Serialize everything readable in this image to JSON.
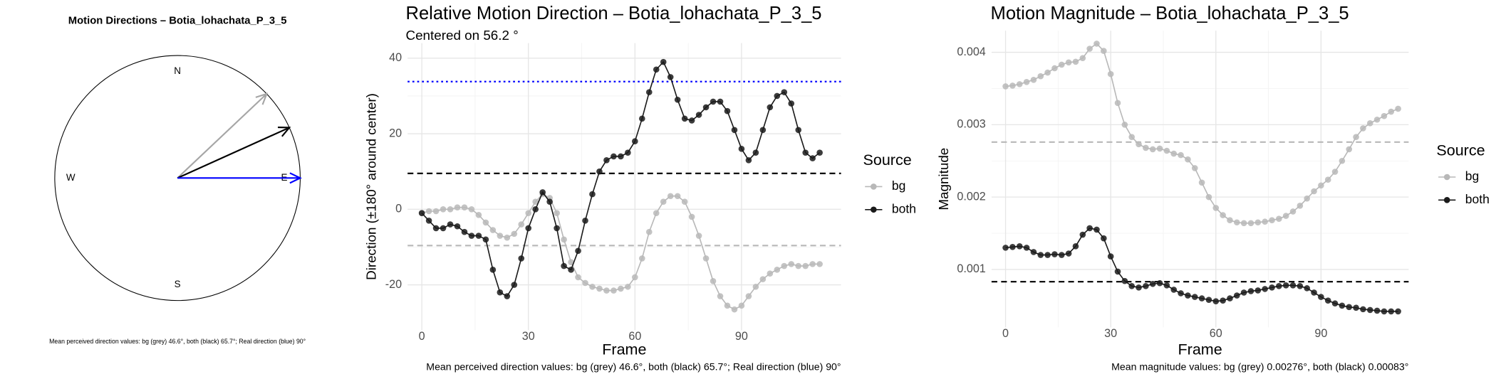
{
  "chart_data": [
    {
      "type": "compass",
      "title": "Motion Directions – Botia_lohachata_P_3_5",
      "labels": [
        "N",
        "E",
        "S",
        "W"
      ],
      "directions": [
        46.6,
        65.7,
        90
      ],
      "colors": [
        "#a6a6a6",
        "#000000",
        "#0000ff"
      ],
      "caption": "Mean perceived direction values: bg (grey) 46.6°, both (black) 65.7°; Real direction (blue) 90°"
    },
    {
      "type": "line",
      "title": "Relative Motion Direction – Botia_lohachata_P_3_5",
      "subtitle": "Centered on  56.2 °",
      "x_label": "Frame",
      "y_label": "Direction (±180° around center)",
      "caption": "Mean perceived direction values: bg (grey) 46.6°, both (black) 65.7°; Real direction (blue) 90°",
      "legend_title": "Source",
      "grid": true,
      "xlim": [
        -4,
        118
      ],
      "xticks": [
        0,
        30,
        60,
        90
      ],
      "ylim": [
        -32,
        44
      ],
      "yticks": [
        -20,
        0,
        20,
        40
      ],
      "x": [
        0,
        2,
        4,
        6,
        8,
        10,
        12,
        14,
        16,
        18,
        20,
        22,
        24,
        26,
        28,
        30,
        32,
        34,
        36,
        38,
        40,
        42,
        44,
        46,
        48,
        50,
        52,
        54,
        56,
        58,
        60,
        62,
        64,
        66,
        68,
        70,
        72,
        74,
        76,
        78,
        80,
        82,
        84,
        86,
        88,
        90,
        92,
        94,
        96,
        98,
        100,
        102,
        104,
        106,
        108,
        110,
        112
      ],
      "series": [
        {
          "name": "bg",
          "color": "#b8b8b8",
          "values": [
            -1,
            -0.5,
            -0.5,
            0,
            0,
            0.5,
            0.5,
            0,
            -1.5,
            -3.5,
            -5.5,
            -7,
            -7.5,
            -6.5,
            -4,
            -1,
            2,
            4,
            3,
            -1,
            -8,
            -14,
            -18,
            -19.5,
            -20.5,
            -21,
            -21.5,
            -21.5,
            -21,
            -20.5,
            -18,
            -13,
            -6,
            -1,
            2,
            3.5,
            3.5,
            2,
            -2,
            -7,
            -13,
            -19,
            -23,
            -25.5,
            -26.5,
            -25.5,
            -23,
            -20.5,
            -18.5,
            -17,
            -16,
            -15,
            -14.5,
            -15,
            -15,
            -14.5,
            -14.5
          ]
        },
        {
          "name": "both",
          "color": "#1a1a1a",
          "values": [
            -1,
            -3,
            -5,
            -5,
            -4,
            -4.5,
            -6,
            -7,
            -7,
            -8,
            -16,
            -22,
            -23,
            -20,
            -13,
            -5,
            0,
            4.5,
            2,
            -5,
            -15,
            -16,
            -11,
            -3,
            4,
            10,
            13,
            14,
            14,
            15,
            18,
            24,
            31,
            37,
            39,
            35,
            29,
            24,
            23.5,
            25,
            27,
            28.5,
            28.5,
            26,
            21,
            16,
            13,
            15,
            21,
            27,
            30,
            31,
            28,
            21,
            15,
            13.5,
            15
          ]
        }
      ],
      "hlines": [
        {
          "value": 33.8,
          "color": "#0000ff",
          "style": "dotted"
        },
        {
          "value": 9.5,
          "color": "#000000",
          "style": "dashed"
        },
        {
          "value": -9.6,
          "color": "#b8b8b8",
          "style": "dashed"
        }
      ]
    },
    {
      "type": "line",
      "title": "Motion Magnitude – Botia_lohachata_P_3_5",
      "x_label": "Frame",
      "y_label": "Magnitude",
      "caption": "Mean magnitude values: bg (grey) 0.00276°, both (black) 0.00083°",
      "legend_title": "Source",
      "grid": true,
      "xlim": [
        -4,
        115
      ],
      "xticks": [
        0,
        30,
        60,
        90
      ],
      "ylim": [
        0.0002,
        0.0043
      ],
      "yticks": [
        0.001,
        0.002,
        0.003,
        0.004
      ],
      "x": [
        0,
        2,
        4,
        6,
        8,
        10,
        12,
        14,
        16,
        18,
        20,
        22,
        24,
        26,
        28,
        30,
        32,
        34,
        36,
        38,
        40,
        42,
        44,
        46,
        48,
        50,
        52,
        54,
        56,
        58,
        60,
        62,
        64,
        66,
        68,
        70,
        72,
        74,
        76,
        78,
        80,
        82,
        84,
        86,
        88,
        90,
        92,
        94,
        96,
        98,
        100,
        102,
        104,
        106,
        108,
        110,
        112
      ],
      "series": [
        {
          "name": "bg",
          "color": "#b8b8b8",
          "values": [
            0.00353,
            0.00354,
            0.00356,
            0.00359,
            0.00362,
            0.00367,
            0.00372,
            0.00378,
            0.00383,
            0.00386,
            0.00387,
            0.00392,
            0.00405,
            0.00412,
            0.00402,
            0.0037,
            0.0033,
            0.003,
            0.00283,
            0.00273,
            0.00268,
            0.00266,
            0.00267,
            0.00264,
            0.0026,
            0.00258,
            0.00252,
            0.0024,
            0.0022,
            0.002,
            0.00185,
            0.00175,
            0.00168,
            0.00165,
            0.00164,
            0.00164,
            0.00165,
            0.00166,
            0.00168,
            0.0017,
            0.00174,
            0.0018,
            0.00188,
            0.00198,
            0.00208,
            0.00216,
            0.00224,
            0.00235,
            0.0025,
            0.00266,
            0.00283,
            0.00295,
            0.00302,
            0.00307,
            0.00312,
            0.00318,
            0.00322
          ]
        },
        {
          "name": "both",
          "color": "#1a1a1a",
          "values": [
            0.0013,
            0.00131,
            0.00132,
            0.0013,
            0.00124,
            0.0012,
            0.0012,
            0.00121,
            0.0012,
            0.00122,
            0.00132,
            0.00148,
            0.00157,
            0.00155,
            0.00143,
            0.00118,
            0.00097,
            0.00084,
            0.00077,
            0.00075,
            0.00077,
            0.0008,
            0.00081,
            0.00078,
            0.00072,
            0.00067,
            0.00064,
            0.00062,
            0.0006,
            0.00058,
            0.00056,
            0.00057,
            0.0006,
            0.00064,
            0.00068,
            0.0007,
            0.00071,
            0.00073,
            0.00075,
            0.00077,
            0.00078,
            0.00078,
            0.00077,
            0.00074,
            0.00068,
            0.00062,
            0.00057,
            0.00053,
            0.0005,
            0.00048,
            0.00047,
            0.00045,
            0.00044,
            0.00043,
            0.00042,
            0.00042,
            0.00042
          ]
        }
      ],
      "hlines": [
        {
          "value": 0.00276,
          "color": "#b8b8b8",
          "style": "dashed"
        },
        {
          "value": 0.00083,
          "color": "#000000",
          "style": "dashed"
        }
      ]
    }
  ]
}
